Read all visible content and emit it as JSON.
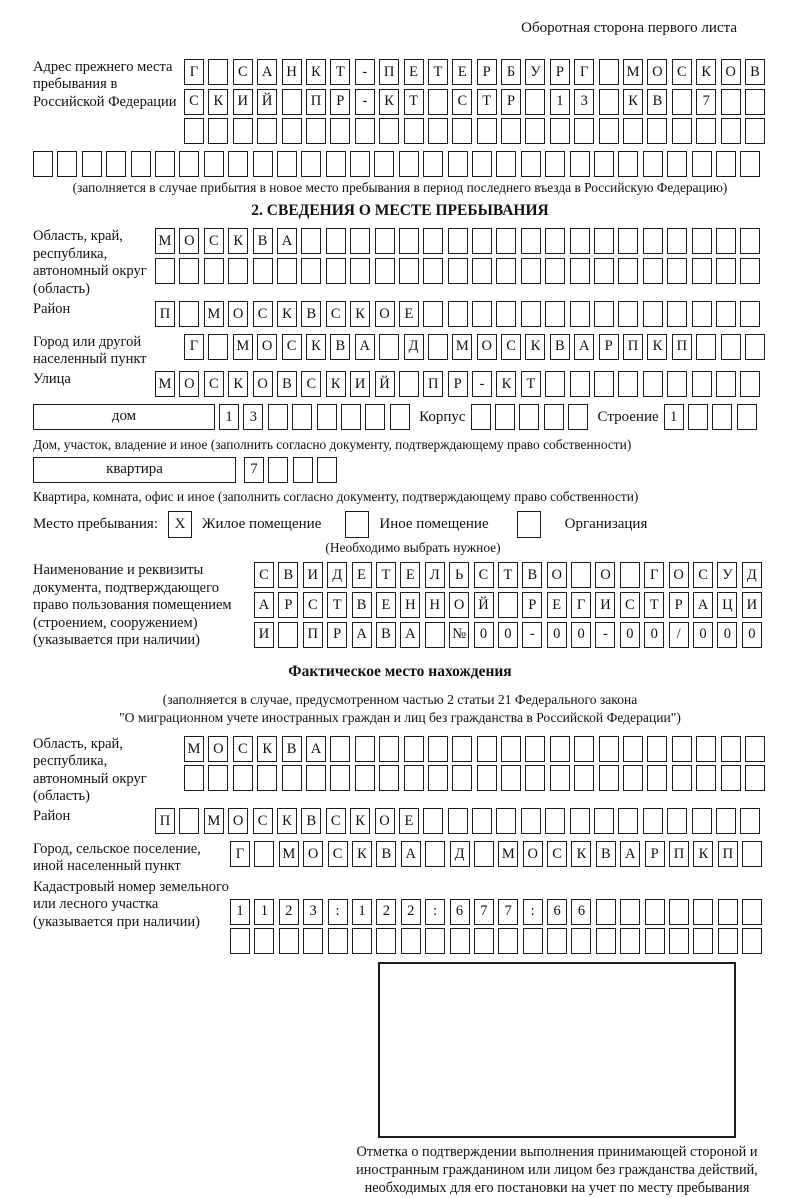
{
  "page": {
    "header_note": "Оборотная сторона первого листа"
  },
  "prev_address": {
    "label": "Адрес прежнего места пребывания в Российской Федерации",
    "rows": [
      {
        "text": "Г САНКТ-ПЕТЕРБУРГ МОСКОВ",
        "count": 24
      },
      {
        "text": "СКИЙ ПР-КТ СТР 13 КВ 7",
        "count": 24
      },
      {
        "text": "",
        "count": 24
      },
      {
        "text": "",
        "count": 30
      }
    ],
    "caption": "(заполняется в случае прибытия в новое место пребывания в период последнего въезда в Российскую Федерацию)"
  },
  "section2": {
    "title": "2. СВЕДЕНИЯ О МЕСТЕ ПРЕБЫВАНИЯ",
    "region": {
      "label": "Область, край, республика, автономный округ (область)",
      "rows": [
        {
          "text": "МОСКВА",
          "count": 25
        },
        {
          "text": "",
          "count": 25
        }
      ]
    },
    "district": {
      "label": "Район",
      "row": {
        "text": "П МОСКВСКОЕ",
        "count": 25
      }
    },
    "city": {
      "label": "Город или другой населенный пункт",
      "row": {
        "text": "Г МОСКВА Д МОСКВАРПКП",
        "count": 24
      }
    },
    "street": {
      "label": "Улица",
      "row": {
        "text": "МОСКОВСКИЙ ПР-КТ",
        "count": 25
      }
    },
    "house": {
      "label": "дом",
      "boxes": {
        "text": "13",
        "count": 8
      }
    },
    "korpus": {
      "label": "Корпус",
      "boxes": {
        "text": "",
        "count": 5
      }
    },
    "stroenie": {
      "label": "Строение",
      "boxes": {
        "text": "1",
        "count": 4
      }
    },
    "house_caption": "Дом, участок, владение и иное (заполнить согласно документу, подтверждающему право собственности)",
    "apartment": {
      "label": "квартира",
      "boxes": {
        "text": "7",
        "count": 4
      }
    },
    "apartment_caption": "Квартира, комната, офис и иное (заполнить согласно документу, подтверждающему право собственности)",
    "stay": {
      "prefix": "Место пребывания:",
      "options": [
        {
          "label": "Жилое помещение",
          "box": {
            "text": "X",
            "count": 1
          }
        },
        {
          "label": "Иное помещение",
          "box": {
            "text": "",
            "count": 1
          }
        },
        {
          "label": "Организация",
          "box": {
            "text": "",
            "count": 1
          }
        }
      ],
      "note": "(Необходимо выбрать нужное)"
    },
    "document": {
      "label": "Наименование и реквизиты документа, подтверждающего право пользования помещением (строением, сооружением) (указывается при наличии)",
      "rows": [
        {
          "text": "СВИДЕТЕЛЬСТВО О ГОСУД",
          "count": 21
        },
        {
          "text": "АРСТВЕННОЙ РЕГИСТРАЦИ",
          "count": 21
        },
        {
          "text": "И ПРАВА №00-00-00/000",
          "count": 21
        }
      ]
    }
  },
  "actual_location": {
    "title": "Фактическое место нахождения",
    "caption_line1": "(заполняется в случае, предусмотренном частью 2 статьи 21 Федерального закона",
    "caption_line2": "\"О миграционном учете иностранных граждан и лиц без гражданства в Российской Федерации\")",
    "region": {
      "label": "Область, край, республика, автономный округ (область)",
      "rows": [
        {
          "text": "МОСКВА",
          "count": 24
        },
        {
          "text": "",
          "count": 24
        }
      ]
    },
    "district": {
      "label": "Район",
      "row": {
        "text": "П МОСКВСКОЕ",
        "count": 25
      }
    },
    "city": {
      "label": "Город, сельское поселение, иной населенный пункт",
      "row": {
        "text": "Г МОСКВА Д МОСКВАРПКП",
        "count": 22
      }
    },
    "cadastre": {
      "label": "Кадастровый номер земельного или лесного участка (указывается при наличии)",
      "rows": [
        {
          "text": "1123:122:677:66",
          "count": 22
        },
        {
          "text": "",
          "count": 22
        }
      ]
    },
    "stamp_caption": "Отметка о подтверждении выполнения принимающей стороной и иностранным гражданином или лицом без гражданства действий, необходимых для его постановки на учет по месту пребывания"
  }
}
